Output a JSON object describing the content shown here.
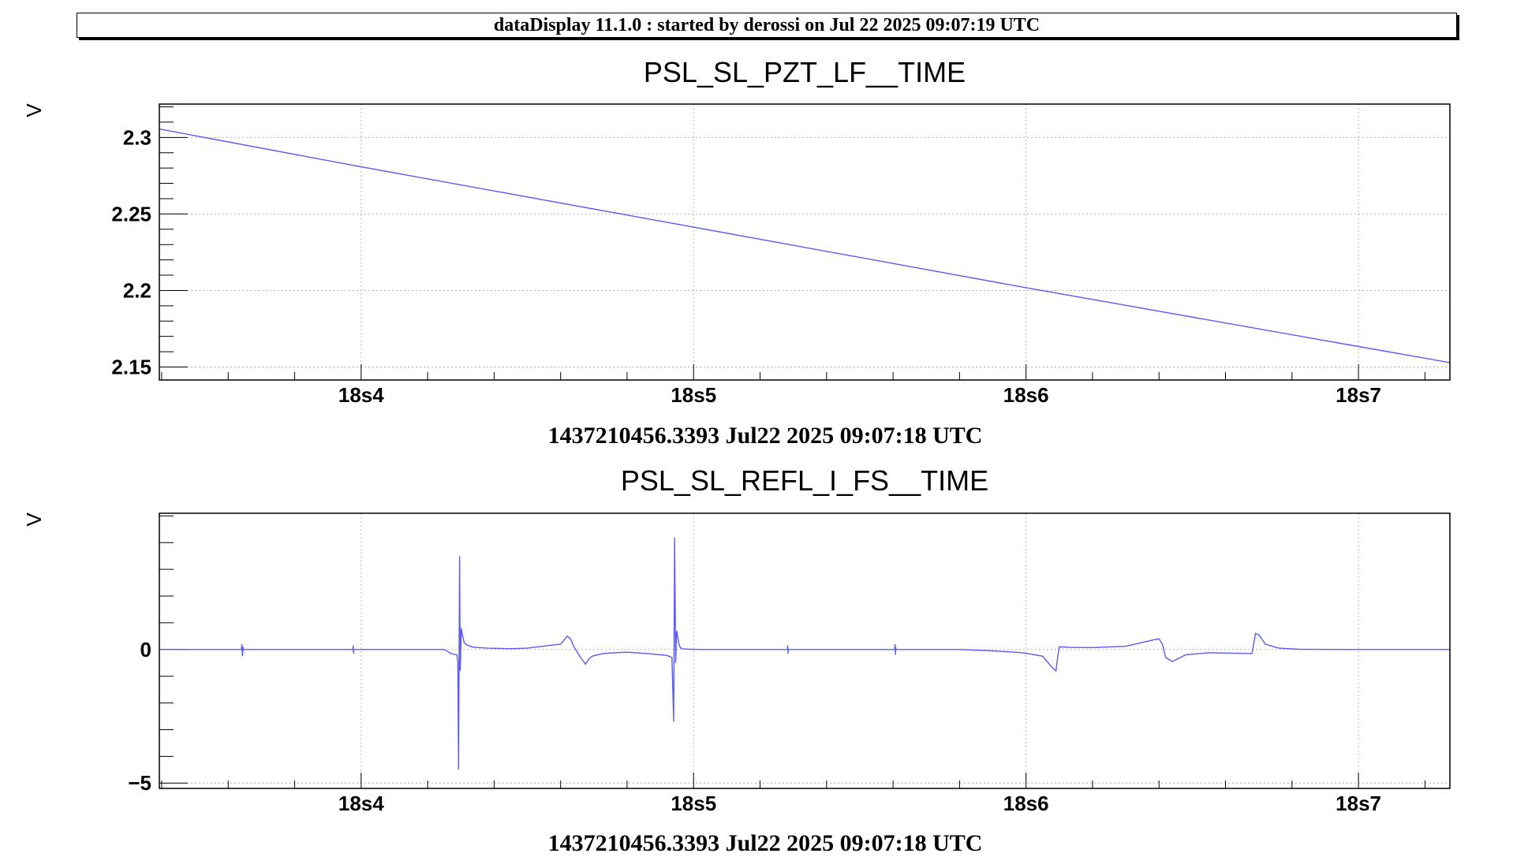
{
  "banner": {
    "text": "dataDisplay 11.1.0 : started by derossi on Jul 22 2025 09:07:19 UTC"
  },
  "colors": {
    "trace": "#5b5bf2",
    "grid": "#b4b4b4",
    "axis": "#000000",
    "background": "#ffffff"
  },
  "chart_data": [
    {
      "type": "line",
      "title": "PSL_SL_PZT_LF__TIME",
      "ylabel": "V",
      "xlabel": "1437210456.3393 Jul22 2025 09:07:18 UTC",
      "x_unit": "s",
      "xlim": [
        0.3393,
        0.7275
      ],
      "ylim": [
        2.1415,
        2.3218
      ],
      "grid": true,
      "y_ticks": [
        2.15,
        2.2,
        2.25,
        2.3
      ],
      "y_tick_labels": [
        "2.15",
        "2.2",
        "2.25",
        "2.3"
      ],
      "x_ticks": [
        0.4,
        0.5,
        0.6,
        0.7
      ],
      "x_tick_labels": [
        "18s4",
        "18s5",
        "18s6",
        "18s7"
      ],
      "series": [
        {
          "x": [
            0.3393,
            0.4,
            0.5,
            0.6,
            0.7,
            0.7275
          ],
          "y": [
            2.3055,
            2.2808,
            2.2414,
            2.2018,
            2.1634,
            2.1529
          ]
        }
      ]
    },
    {
      "type": "line",
      "title": "PSL_SL_REFL_I_FS__TIME",
      "ylabel": "V",
      "xlabel": "1437210456.3393 Jul22 2025 09:07:18 UTC",
      "x_unit": "s",
      "xlim": [
        0.3393,
        0.7275
      ],
      "ylim": [
        -5.2,
        5.1
      ],
      "grid": true,
      "y_ticks": [
        -5,
        0
      ],
      "y_tick_labels": [
        "−5",
        "0"
      ],
      "x_ticks": [
        0.4,
        0.5,
        0.6,
        0.7
      ],
      "x_tick_labels": [
        "18s4",
        "18s5",
        "18s6",
        "18s7"
      ],
      "series": [
        {
          "x": [
            0.3393,
            0.364,
            0.3641,
            0.3643,
            0.3645,
            0.3646,
            0.3975,
            0.3976,
            0.3977,
            0.3978,
            0.425,
            0.427,
            0.4288,
            0.4291,
            0.4293,
            0.4296,
            0.4298,
            0.4301,
            0.4304,
            0.4307,
            0.431,
            0.432,
            0.434,
            0.438,
            0.445,
            0.45,
            0.46,
            0.461,
            0.462,
            0.463,
            0.464,
            0.466,
            0.4675,
            0.4685,
            0.4695,
            0.471,
            0.473,
            0.476,
            0.48,
            0.486,
            0.492,
            0.4935,
            0.494,
            0.4943,
            0.4946,
            0.4949,
            0.4952,
            0.4955,
            0.4958,
            0.4962,
            0.497,
            0.499,
            0.503,
            0.51,
            0.5282,
            0.5283,
            0.5284,
            0.5285,
            0.5605,
            0.5606,
            0.5607,
            0.5608,
            0.5609,
            0.58,
            0.59,
            0.599,
            0.605,
            0.608,
            0.609,
            0.6095,
            0.61,
            0.613,
            0.62,
            0.63,
            0.638,
            0.64,
            0.641,
            0.642,
            0.644,
            0.648,
            0.655,
            0.668,
            0.669,
            0.67,
            0.672,
            0.676,
            0.682,
            0.7,
            0.7275
          ],
          "y": [
            0,
            0,
            0.2,
            -0.25,
            0.1,
            0,
            0,
            0.15,
            -0.15,
            0,
            0,
            -0.15,
            -0.2,
            -0.5,
            -4.5,
            3.5,
            -0.8,
            0.8,
            0.6,
            0.4,
            0.25,
            0.15,
            0.08,
            0.05,
            0.03,
            0.05,
            0.2,
            0.35,
            0.5,
            0.4,
            0.1,
            -0.3,
            -0.55,
            -0.35,
            -0.25,
            -0.2,
            -0.15,
            -0.12,
            -0.1,
            -0.15,
            -0.22,
            -0.3,
            -2.7,
            4.2,
            -0.5,
            0.7,
            0.5,
            0.25,
            0.12,
            0.05,
            0.02,
            0.01,
            0,
            0,
            0,
            0.15,
            -0.15,
            0,
            0,
            0.2,
            -0.2,
            0.1,
            0,
            0,
            -0.05,
            -0.12,
            -0.25,
            -0.7,
            -0.8,
            -0.3,
            0.1,
            0.08,
            0.07,
            0.12,
            0.35,
            0.4,
            0.2,
            -0.3,
            -0.45,
            -0.2,
            -0.12,
            -0.15,
            0.6,
            0.55,
            0.2,
            0.05,
            0.01,
            0,
            0
          ]
        }
      ]
    }
  ]
}
